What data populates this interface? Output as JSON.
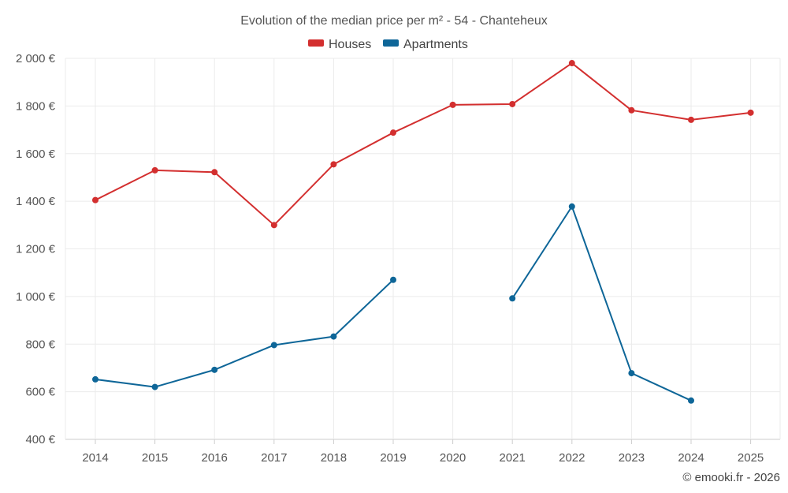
{
  "chart_data": {
    "type": "line",
    "title": "Evolution of the median price per m² - 54 - Chanteheux",
    "x": [
      "2014",
      "2015",
      "2016",
      "2017",
      "2018",
      "2019",
      "2020",
      "2021",
      "2022",
      "2023",
      "2024",
      "2025"
    ],
    "ylim": [
      400,
      2000
    ],
    "yticks": [
      400,
      600,
      800,
      1000,
      1200,
      1400,
      1600,
      1800,
      2000
    ],
    "ytick_labels": [
      "400 €",
      "600 €",
      "800 €",
      "1 000 €",
      "1 200 €",
      "1 400 €",
      "1 600 €",
      "1 800 €",
      "2 000 €"
    ],
    "grid": true,
    "legend_position": "top-center",
    "series": [
      {
        "name": "Houses",
        "color": "#d32f2f",
        "values": [
          1405,
          1530,
          1522,
          1300,
          1555,
          1688,
          1805,
          1808,
          1980,
          1782,
          1742,
          1772
        ]
      },
      {
        "name": "Apartments",
        "color": "#0e6698",
        "values": [
          652,
          620,
          692,
          796,
          832,
          1070,
          null,
          992,
          1378,
          678,
          563,
          null
        ]
      }
    ]
  },
  "footer": {
    "copyright": "© emooki.fr - 2026"
  }
}
